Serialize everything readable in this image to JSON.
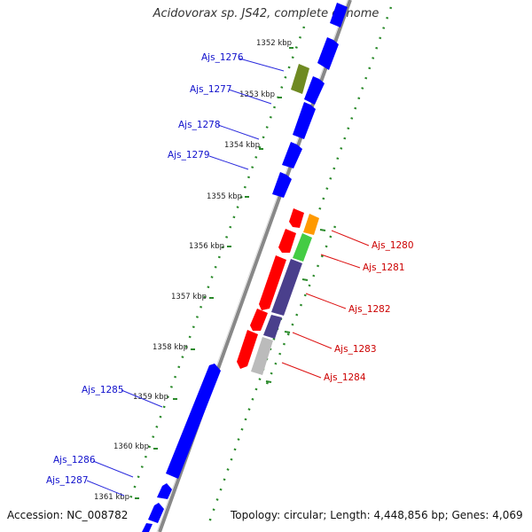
{
  "title": "Acidovorax sp. JS42, complete genome",
  "accession_text": "Accession: NC_008782",
  "summary_text": "Topology: circular; Length: 4,448,856 bp; Genes: 4,069",
  "colors": {
    "forward_gene": "#0000ff",
    "reverse_gene": "#ff0000",
    "forward_label": "#1010cc",
    "reverse_label": "#cc0000",
    "track_dots": "#2a8a2a",
    "backbone": "#888888"
  },
  "ticks": [
    {
      "label": "1352 kbp"
    },
    {
      "label": "1353 kbp"
    },
    {
      "label": "1354 kbp"
    },
    {
      "label": "1355 kbp"
    },
    {
      "label": "1356 kbp"
    },
    {
      "label": "1357 kbp"
    },
    {
      "label": "1358 kbp"
    },
    {
      "label": "1359 kbp"
    },
    {
      "label": "1360 kbp"
    },
    {
      "label": "1361 kbp"
    }
  ],
  "forward_genes": [
    {
      "name": "Ajs_1276"
    },
    {
      "name": "Ajs_1277"
    },
    {
      "name": "Ajs_1278"
    },
    {
      "name": "Ajs_1279"
    },
    {
      "name": "Ajs_1285"
    },
    {
      "name": "Ajs_1286"
    },
    {
      "name": "Ajs_1287"
    }
  ],
  "reverse_genes": [
    {
      "name": "Ajs_1280"
    },
    {
      "name": "Ajs_1281"
    },
    {
      "name": "Ajs_1282"
    },
    {
      "name": "Ajs_1283"
    },
    {
      "name": "Ajs_1284"
    }
  ]
}
